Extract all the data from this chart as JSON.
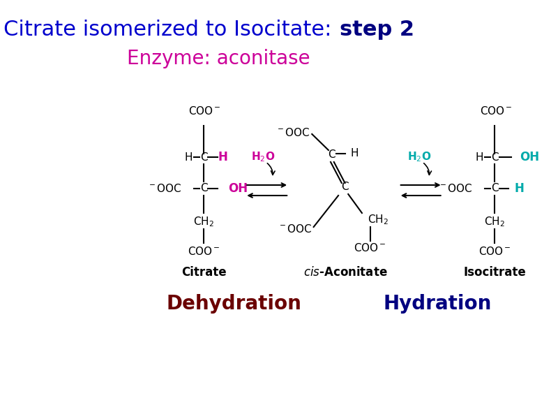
{
  "title_part1": "Citrate isomerized to Isocitate: ",
  "title_part2": "step 2",
  "title_color1": "#0000CD",
  "title_color2": "#000080",
  "title_fontsize": 22,
  "enzyme_label": "Enzyme: aconitase",
  "enzyme_color": "#CC0099",
  "enzyme_fontsize": 20,
  "dehydration_label": "Dehydration",
  "dehydration_color": "#6B0000",
  "hydration_label": "Hydration",
  "hydration_color": "#000080",
  "label_fontsize": 20,
  "bg_color": "#FFFFFF",
  "highlight_color_magenta": "#CC0099",
  "highlight_color_cyan": "#00AAAA",
  "black": "#000000"
}
